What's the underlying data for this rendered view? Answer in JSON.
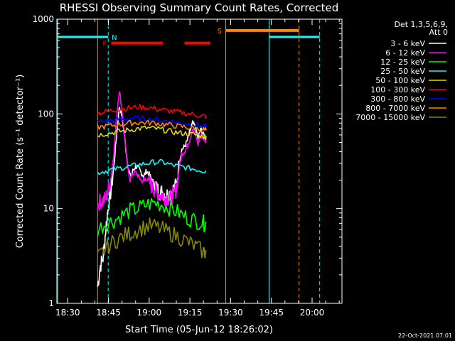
{
  "chart_data": {
    "type": "line",
    "title": "RHESSI Observing Summary Count Rates, Corrected",
    "xlabel": "Start Time (05-Jun-12 18:26:02)",
    "ylabel": "Corrected Count Rate (s⁻¹ detector⁻¹)",
    "yscale": "log",
    "ylim": [
      1,
      1000
    ],
    "xlim_minutes": [
      1106,
      1211
    ],
    "x_tick_labels": [
      "18:30",
      "18:45",
      "19:00",
      "19:15",
      "19:30",
      "19:45",
      "20:00"
    ],
    "x_tick_minutes": [
      1110,
      1125,
      1140,
      1155,
      1170,
      1185,
      1200
    ],
    "y_tick_labels": [
      "1",
      "10",
      "100",
      "1000"
    ],
    "y_tick_values": [
      1,
      10,
      100,
      1000
    ],
    "legend_header": [
      "Det 1,3,5,6,9,",
      "Att 0"
    ],
    "legend_position": "top-right",
    "series": [
      {
        "name": "3 - 6 keV",
        "color": "#ffffff",
        "x": [
          1121,
          1122,
          1123,
          1124,
          1125,
          1126,
          1127,
          1128,
          1129,
          1130,
          1131,
          1132,
          1133,
          1134,
          1135,
          1136,
          1137,
          1138,
          1139,
          1140,
          1141,
          1142,
          1143,
          1144,
          1145,
          1146,
          1147,
          1148,
          1149,
          1150,
          1151,
          1152,
          1153,
          1154,
          1155,
          1156,
          1157,
          1158,
          1159,
          1160,
          1161
        ],
        "y": [
          1.5,
          2.5,
          3,
          6,
          11,
          16,
          28,
          60,
          120,
          95,
          55,
          30,
          22,
          25,
          28,
          27,
          24,
          22,
          25,
          23,
          20,
          18,
          16,
          15,
          15,
          14,
          14,
          15,
          16,
          18,
          30,
          42,
          45,
          52,
          65,
          80,
          72,
          55,
          70,
          60,
          55
        ]
      },
      {
        "name": "6 - 12 keV",
        "color": "#ff00ff",
        "x": [
          1121,
          1122,
          1123,
          1124,
          1125,
          1126,
          1127,
          1128,
          1129,
          1130,
          1131,
          1132,
          1133,
          1134,
          1135,
          1136,
          1137,
          1138,
          1139,
          1140,
          1141,
          1142,
          1143,
          1144,
          1145,
          1146,
          1147,
          1148,
          1149,
          1150,
          1151,
          1152,
          1153,
          1154,
          1155,
          1156,
          1157,
          1158,
          1159,
          1160,
          1161
        ],
        "y": [
          11,
          12,
          12,
          13,
          16,
          22,
          40,
          95,
          180,
          110,
          55,
          28,
          20,
          24,
          24,
          22,
          20,
          19,
          21,
          19,
          17,
          16,
          15,
          14,
          14,
          13,
          13,
          13,
          14,
          16,
          27,
          38,
          40,
          45,
          55,
          70,
          60,
          48,
          60,
          55,
          50
        ]
      },
      {
        "name": "12 - 25 keV",
        "color": "#00ff00",
        "x": [
          1121,
          1124,
          1127,
          1130,
          1133,
          1136,
          1139,
          1142,
          1145,
          1148,
          1151,
          1154,
          1157,
          1160,
          1161
        ],
        "y": [
          6,
          7,
          7.5,
          8.5,
          9.5,
          10,
          11,
          11.5,
          11,
          10,
          9,
          8,
          7.5,
          7,
          7
        ]
      },
      {
        "name": "25 - 50 keV",
        "color": "#00ffff",
        "x": [
          1121,
          1124,
          1127,
          1130,
          1133,
          1136,
          1139,
          1142,
          1145,
          1148,
          1151,
          1154,
          1157,
          1160,
          1161
        ],
        "y": [
          24,
          25,
          26,
          27,
          28,
          29,
          30,
          31,
          31,
          29,
          28,
          27,
          26,
          25,
          25
        ]
      },
      {
        "name": "50 - 100 keV",
        "color": "#dddd00",
        "x": [
          1121,
          1124,
          1127,
          1130,
          1133,
          1136,
          1139,
          1142,
          1145,
          1148,
          1151,
          1154,
          1157,
          1160,
          1161
        ],
        "y": [
          60,
          62,
          64,
          66,
          68,
          70,
          71,
          70,
          68,
          65,
          63,
          62,
          60,
          58,
          58
        ]
      },
      {
        "name": "100 - 300 keV",
        "color": "#ff0000",
        "x": [
          1121,
          1124,
          1127,
          1130,
          1133,
          1136,
          1139,
          1142,
          1145,
          1148,
          1151,
          1154,
          1157,
          1160,
          1161
        ],
        "y": [
          102,
          105,
          110,
          113,
          116,
          118,
          117,
          114,
          110,
          107,
          104,
          101,
          98,
          95,
          94
        ]
      },
      {
        "name": "300 - 800 keV",
        "color": "#0000ff",
        "x": [
          1121,
          1124,
          1127,
          1130,
          1133,
          1136,
          1139,
          1142,
          1145,
          1148,
          1151,
          1154,
          1157,
          1160,
          1161
        ],
        "y": [
          82,
          84,
          86,
          88,
          90,
          90,
          89,
          87,
          85,
          83,
          81,
          79,
          76,
          74,
          73
        ]
      },
      {
        "name": "800 - 7000 keV",
        "color": "#ff8800",
        "x": [
          1121,
          1124,
          1127,
          1130,
          1133,
          1136,
          1139,
          1142,
          1145,
          1148,
          1151,
          1154,
          1157,
          1160,
          1161
        ],
        "y": [
          72,
          74,
          76,
          78,
          80,
          81,
          81,
          80,
          78,
          76,
          74,
          72,
          70,
          68,
          67
        ]
      },
      {
        "name": "7000 - 15000 keV",
        "color": "#888800",
        "x": [
          1121,
          1124,
          1127,
          1130,
          1133,
          1136,
          1139,
          1142,
          1145,
          1148,
          1151,
          1154,
          1157,
          1160,
          1161
        ],
        "y": [
          3,
          3.8,
          4.5,
          5,
          5.5,
          6,
          6.5,
          6.5,
          6,
          5.5,
          5,
          4.5,
          4,
          3.5,
          3.5
        ]
      }
    ],
    "annotations": [
      {
        "label": "N",
        "color": "#00ffff"
      },
      {
        "label": "F",
        "color": "#ff0000"
      },
      {
        "label": "S",
        "color": "#ff8800"
      }
    ],
    "vertical_markers": [
      {
        "minute": 1106.3,
        "color": "#00ffff",
        "style": "solid"
      },
      {
        "minute": 1124.9,
        "color": "#00ffff",
        "style": "dashed"
      },
      {
        "minute": 1121.0,
        "color": "#ff8800",
        "style": "solid"
      },
      {
        "minute": 1168.2,
        "color": "#ff8800",
        "style": "solid"
      },
      {
        "minute": 1184.2,
        "color": "#00ffff",
        "style": "solid"
      },
      {
        "minute": 1195.2,
        "color": "#ff8800",
        "style": "dashed"
      },
      {
        "minute": 1202.8,
        "color": "#00ffff",
        "style": "dashed"
      }
    ],
    "flag_bars": [
      {
        "label": "night",
        "color": "#00ffff",
        "level": 650,
        "from": 1106.3,
        "to": 1124.9
      },
      {
        "label": "night",
        "color": "#00ffff",
        "level": 650,
        "from": 1184.2,
        "to": 1202.8
      },
      {
        "label": "saa",
        "color": "#ff8800",
        "level": 760,
        "from": 1168.2,
        "to": 1195.2
      },
      {
        "label": "flare",
        "color": "#ff0000",
        "level": 560,
        "from": 1126,
        "to": 1145
      },
      {
        "label": "flare",
        "color": "#ff0000",
        "level": 560,
        "from": 1153,
        "to": 1162.5
      }
    ]
  },
  "footer": {
    "timestamp": "22-Oct-2021 07:01"
  }
}
